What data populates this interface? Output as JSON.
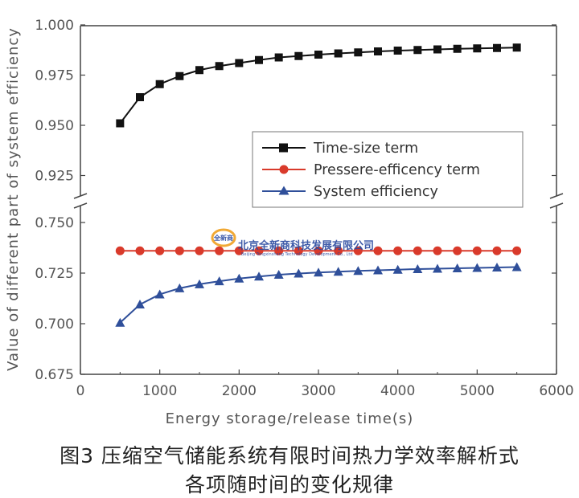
{
  "chart_data": {
    "type": "line",
    "title": "",
    "xlabel": "Energy storage/release time(s)",
    "ylabel": "Value of different part of system efficiency",
    "xlim": [
      0,
      6000
    ],
    "x_ticks": [
      "0",
      "1000",
      "2000",
      "3000",
      "4000",
      "5000",
      "6000"
    ],
    "y_ticks_upper": [
      "1.000",
      "0.975",
      "0.950",
      "0.925"
    ],
    "y_ticks_lower": [
      "0.750",
      "0.725",
      "0.700",
      "0.675"
    ],
    "axis_break": {
      "from": 0.76,
      "to": 0.915
    },
    "ylim": [
      0.675,
      1.0
    ],
    "grid": false,
    "legend_position": "center-right",
    "x": [
      500,
      750,
      1000,
      1250,
      1500,
      1750,
      2000,
      2250,
      2500,
      2750,
      3000,
      3250,
      3500,
      3750,
      4000,
      4250,
      4500,
      4750,
      5000,
      5250,
      5500
    ],
    "series": [
      {
        "name": "Time-size term",
        "marker": "square",
        "color": "#111111",
        "values": [
          0.951,
          0.964,
          0.9705,
          0.9745,
          0.9775,
          0.9795,
          0.981,
          0.9825,
          0.9838,
          0.9845,
          0.9852,
          0.9858,
          0.9863,
          0.9868,
          0.9872,
          0.9875,
          0.9878,
          0.9881,
          0.9883,
          0.9885,
          0.9887
        ]
      },
      {
        "name": "Pressere-efficency term",
        "marker": "circle",
        "color": "#d93a2b",
        "values": [
          0.736,
          0.736,
          0.736,
          0.736,
          0.736,
          0.736,
          0.736,
          0.736,
          0.736,
          0.736,
          0.736,
          0.736,
          0.736,
          0.736,
          0.736,
          0.736,
          0.736,
          0.736,
          0.736,
          0.736,
          0.736
        ]
      },
      {
        "name": "System efficiency",
        "marker": "triangle",
        "color": "#2f4f9a",
        "values": [
          0.7005,
          0.7095,
          0.7145,
          0.7175,
          0.7195,
          0.721,
          0.7223,
          0.7233,
          0.7242,
          0.7248,
          0.7253,
          0.7257,
          0.7261,
          0.7264,
          0.7267,
          0.727,
          0.7272,
          0.7274,
          0.7276,
          0.7278,
          0.728
        ]
      }
    ]
  },
  "watermark": {
    "logo_text": "全新商",
    "cn": "北京全新商科技发展有限公司",
    "en": "Beijing Tongxinshang Technology Development Co., Ltd"
  },
  "caption": {
    "line1": "图3 压缩空气储能系统有限时间热力学效率解析式",
    "line2": "各项随时间的变化规律"
  }
}
